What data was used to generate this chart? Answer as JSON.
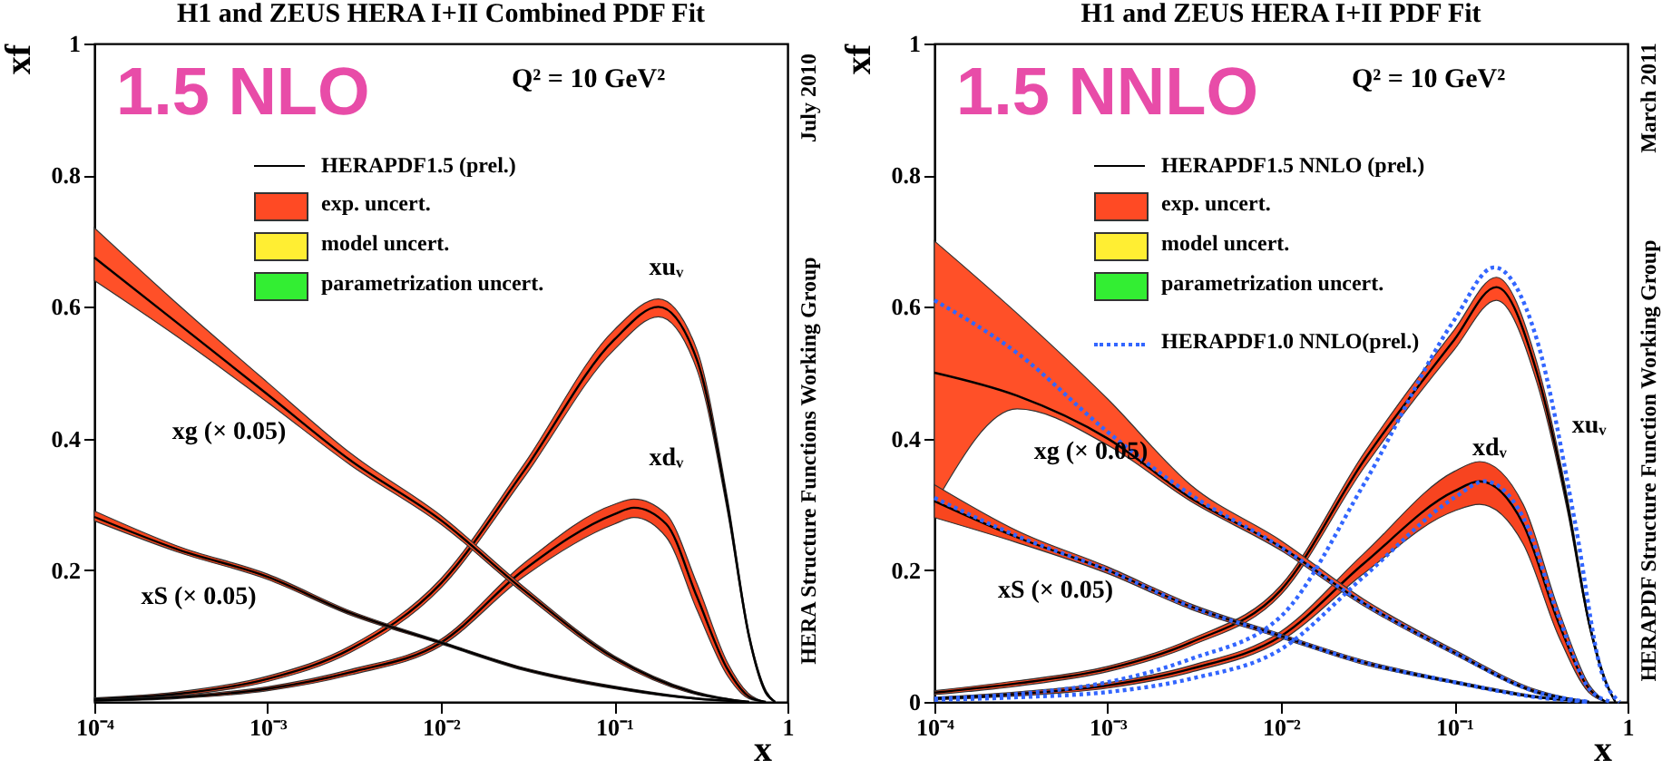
{
  "chart_data": [
    {
      "type": "line",
      "title": "H1 and ZEUS HERA I+II Combined PDF Fit",
      "xlabel": "x",
      "ylabel": "xf",
      "log": "x",
      "xlim": [
        0.0001,
        1
      ],
      "ylim": [
        0,
        1
      ],
      "xticks": [
        {
          "value": 0.0001,
          "label": "10⁻⁴"
        },
        {
          "value": 0.001,
          "label": "10⁻³"
        },
        {
          "value": 0.01,
          "label": "10⁻²"
        },
        {
          "value": 0.1,
          "label": "10⁻¹"
        },
        1
      ],
      "yticks": [
        0.2,
        0.4,
        0.6,
        0.8,
        1
      ],
      "annotations": [
        "1.5 NLO",
        "Q² = 10 GeV²",
        "July 2010",
        "HERA Structure Functions Working Group",
        "HERAPDF1.5 (prel.)",
        "exp. uncert.",
        "model uncert.",
        "parametrization uncert."
      ],
      "series": [
        {
          "name": "xuᵥ",
          "color": "#000000",
          "x": [
            0.0001,
            0.0003,
            0.001,
            0.003,
            0.01,
            0.03,
            0.1,
            0.18,
            0.3,
            0.45,
            0.6,
            0.75,
            0.85
          ],
          "values": [
            0.004,
            0.012,
            0.035,
            0.08,
            0.18,
            0.35,
            0.55,
            0.6,
            0.52,
            0.3,
            0.1,
            0.015,
            0
          ],
          "lower": [
            0.002,
            0.009,
            0.031,
            0.075,
            0.173,
            0.34,
            0.535,
            0.585,
            0.505,
            0.29,
            0.095,
            0.012,
            0
          ],
          "upper": [
            0.006,
            0.015,
            0.039,
            0.085,
            0.187,
            0.36,
            0.565,
            0.612,
            0.535,
            0.31,
            0.105,
            0.018,
            0
          ]
        },
        {
          "name": "xdᵥ",
          "color": "#000000",
          "x": [
            0.0001,
            0.0003,
            0.001,
            0.003,
            0.01,
            0.03,
            0.1,
            0.13,
            0.2,
            0.3,
            0.45,
            0.6,
            0.75
          ],
          "values": [
            0.002,
            0.007,
            0.02,
            0.045,
            0.09,
            0.2,
            0.285,
            0.295,
            0.27,
            0.16,
            0.05,
            0.008,
            0
          ],
          "lower": [
            0.001,
            0.005,
            0.017,
            0.041,
            0.085,
            0.19,
            0.27,
            0.28,
            0.25,
            0.14,
            0.04,
            0.005,
            0
          ],
          "upper": [
            0.003,
            0.009,
            0.023,
            0.049,
            0.095,
            0.21,
            0.3,
            0.308,
            0.285,
            0.18,
            0.06,
            0.012,
            0
          ]
        },
        {
          "name": "xg (× 0.05)",
          "color": "#000000",
          "x": [
            0.0001,
            0.0003,
            0.001,
            0.003,
            0.01,
            0.03,
            0.1,
            0.3,
            0.6
          ],
          "values": [
            0.675,
            0.576,
            0.467,
            0.367,
            0.276,
            0.17,
            0.067,
            0.013,
            0
          ],
          "lower": [
            0.64,
            0.555,
            0.455,
            0.36,
            0.27,
            0.165,
            0.063,
            0.011,
            0
          ],
          "upper": [
            0.72,
            0.605,
            0.485,
            0.378,
            0.283,
            0.175,
            0.07,
            0.015,
            0
          ]
        },
        {
          "name": "xS (× 0.05)",
          "color": "#000000",
          "x": [
            0.0001,
            0.0003,
            0.001,
            0.003,
            0.01,
            0.03,
            0.1,
            0.3,
            0.6
          ],
          "values": [
            0.281,
            0.232,
            0.19,
            0.135,
            0.09,
            0.05,
            0.022,
            0.005,
            0
          ],
          "lower": [
            0.275,
            0.228,
            0.186,
            0.132,
            0.088,
            0.048,
            0.02,
            0.004,
            0
          ],
          "upper": [
            0.29,
            0.237,
            0.194,
            0.138,
            0.092,
            0.052,
            0.024,
            0.006,
            0
          ]
        }
      ]
    },
    {
      "type": "line",
      "title": "H1 and ZEUS HERA I+II PDF Fit",
      "xlabel": "x",
      "ylabel": "xf",
      "log": "x",
      "legend": "top",
      "xlim": [
        0.0001,
        1
      ],
      "ylim": [
        0,
        1
      ],
      "xticks": [
        {
          "value": 0.0001,
          "label": "10⁻⁴"
        },
        {
          "value": 0.001,
          "label": "10⁻³"
        },
        {
          "value": 0.01,
          "label": "10⁻²"
        },
        {
          "value": 0.1,
          "label": "10⁻¹"
        },
        1
      ],
      "yticks": [
        0,
        0.2,
        0.4,
        0.6,
        0.8,
        1
      ],
      "annotations": [
        "1.5 NNLO",
        "Q² = 10 GeV²",
        "March 2011",
        "HERAPDF Structure Function Working Group",
        "HERAPDF1.5 NNLO (prel.)",
        "exp. uncert.",
        "model uncert.",
        "parametrization uncert."
      ],
      "series": [
        {
          "name": "xuᵥ",
          "color": "#000000",
          "x": [
            0.0001,
            0.0003,
            0.001,
            0.003,
            0.01,
            0.03,
            0.1,
            0.175,
            0.3,
            0.45,
            0.6,
            0.75,
            0.85
          ],
          "values": [
            0.014,
            0.028,
            0.05,
            0.09,
            0.17,
            0.366,
            0.55,
            0.63,
            0.5,
            0.3,
            0.12,
            0.03,
            0
          ],
          "lower": [
            0.011,
            0.024,
            0.046,
            0.085,
            0.163,
            0.355,
            0.535,
            0.61,
            0.485,
            0.29,
            0.115,
            0.027,
            0
          ],
          "upper": [
            0.017,
            0.032,
            0.054,
            0.095,
            0.177,
            0.377,
            0.565,
            0.645,
            0.515,
            0.31,
            0.125,
            0.033,
            0
          ]
        },
        {
          "name": "xdᵥ",
          "color": "#000000",
          "x": [
            0.0001,
            0.0003,
            0.001,
            0.003,
            0.01,
            0.03,
            0.1,
            0.14,
            0.25,
            0.4,
            0.6,
            0.75
          ],
          "values": [
            0.005,
            0.012,
            0.025,
            0.05,
            0.1,
            0.21,
            0.32,
            0.335,
            0.27,
            0.12,
            0.02,
            0
          ],
          "lower": [
            0.003,
            0.009,
            0.021,
            0.045,
            0.093,
            0.195,
            0.29,
            0.3,
            0.24,
            0.1,
            0.014,
            0
          ],
          "upper": [
            0.007,
            0.015,
            0.029,
            0.055,
            0.107,
            0.225,
            0.35,
            0.365,
            0.3,
            0.14,
            0.026,
            0
          ]
        },
        {
          "name": "xg (× 0.05)",
          "color": "#000000",
          "x": [
            0.0001,
            0.0003,
            0.001,
            0.003,
            0.01,
            0.03,
            0.1,
            0.3,
            0.6
          ],
          "values": [
            0.5,
            0.465,
            0.4,
            0.31,
            0.235,
            0.15,
            0.075,
            0.015,
            0
          ],
          "lower": [
            0.3,
            0.445,
            0.39,
            0.305,
            0.23,
            0.146,
            0.072,
            0.013,
            0
          ],
          "upper": [
            0.7,
            0.59,
            0.46,
            0.33,
            0.245,
            0.156,
            0.079,
            0.018,
            0
          ]
        },
        {
          "name": "xS (× 0.05)",
          "color": "#000000",
          "x": [
            0.0001,
            0.0003,
            0.001,
            0.003,
            0.01,
            0.03,
            0.1,
            0.3,
            0.6
          ],
          "values": [
            0.305,
            0.25,
            0.2,
            0.145,
            0.1,
            0.06,
            0.03,
            0.007,
            0
          ],
          "lower": [
            0.28,
            0.242,
            0.195,
            0.141,
            0.097,
            0.057,
            0.028,
            0.006,
            0
          ],
          "upper": [
            0.33,
            0.26,
            0.205,
            0.149,
            0.103,
            0.063,
            0.032,
            0.009,
            0
          ]
        },
        {
          "name": "HERAPDF1.0 NNLO(prel.)",
          "color": "#3366ff",
          "line_style": "dotted",
          "x": [
            0.0001,
            0.0003,
            0.001,
            0.003,
            0.01,
            0.03,
            0.1,
            0.17,
            0.3,
            0.5,
            0.7,
            0.9
          ],
          "values": [
            0.005,
            0.012,
            0.03,
            0.065,
            0.13,
            0.33,
            0.58,
            0.66,
            0.55,
            0.27,
            0.05,
            0
          ]
        },
        {
          "color": "#3366ff",
          "line_style": "dotted",
          "x": [
            0.0001,
            0.0003,
            0.001,
            0.003,
            0.01,
            0.03,
            0.1,
            0.15,
            0.25,
            0.4,
            0.6,
            0.8
          ],
          "values": [
            0.003,
            0.007,
            0.015,
            0.035,
            0.08,
            0.19,
            0.31,
            0.335,
            0.28,
            0.13,
            0.02,
            0
          ]
        },
        {
          "color": "#3366ff",
          "line_style": "dotted",
          "x": [
            0.0001,
            0.0003,
            0.001,
            0.003,
            0.01,
            0.03,
            0.1,
            0.3,
            0.6
          ],
          "values": [
            0.61,
            0.53,
            0.41,
            0.315,
            0.235,
            0.15,
            0.075,
            0.015,
            0
          ]
        },
        {
          "color": "#3366ff",
          "line_style": "dotted",
          "x": [
            0.0001,
            0.0003,
            0.001,
            0.003,
            0.01,
            0.03,
            0.1,
            0.3,
            0.6
          ],
          "values": [
            0.31,
            0.252,
            0.2,
            0.145,
            0.1,
            0.06,
            0.03,
            0.007,
            0
          ]
        }
      ]
    }
  ]
}
